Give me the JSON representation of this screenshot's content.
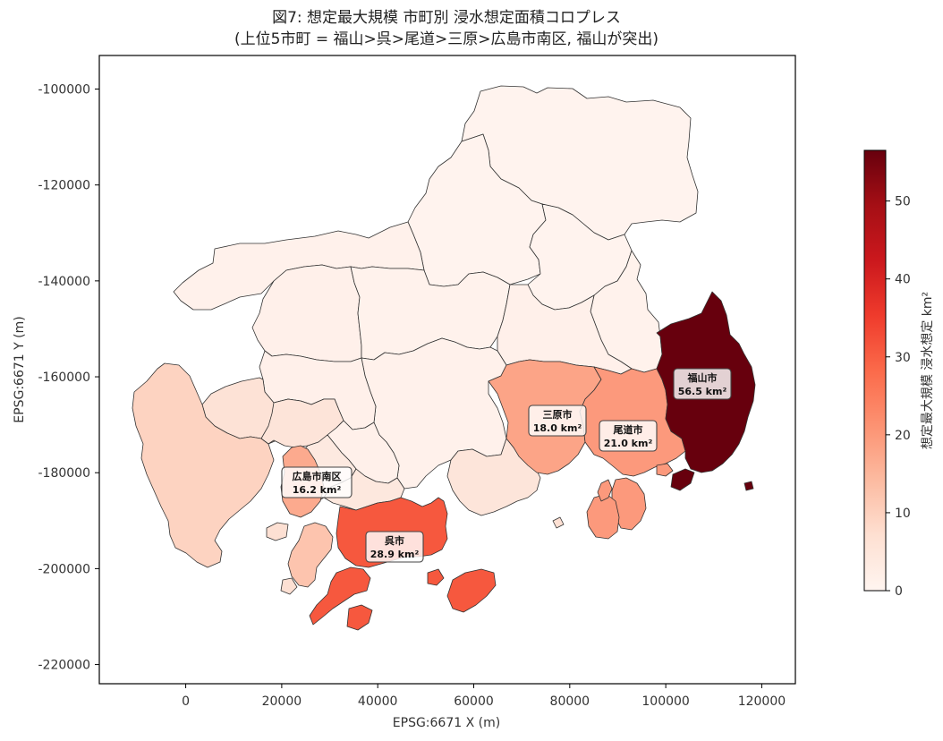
{
  "chart_data": {
    "type": "choropleth",
    "title_line1": "図7: 想定最大規模 市町別 浸水想定面積コロプレス",
    "title_line2": "(上位5市町 = 福山>呉>尾道>三原>広島市南区, 福山が突出)",
    "xlabel": "EPSG:6671 X (m)",
    "ylabel": "EPSG:6671 Y (m)",
    "xlim": [
      -18000,
      127000
    ],
    "ylim": [
      -224000,
      -93000
    ],
    "x_ticks": [
      0,
      20000,
      40000,
      60000,
      80000,
      100000,
      120000
    ],
    "y_ticks": [
      -100000,
      -120000,
      -140000,
      -160000,
      -180000,
      -200000,
      -220000
    ],
    "colorbar": {
      "label": "想定最大規模 浸水想定 km²",
      "min": 0,
      "max": 56.5,
      "ticks": [
        0,
        10,
        20,
        30,
        40,
        50
      ],
      "colormap": "Reds"
    },
    "labeled_municipalities": [
      {
        "name": "福山市",
        "value_text": "56.5 km²",
        "value": 56.5
      },
      {
        "name": "呉市",
        "value_text": "28.9 km²",
        "value": 28.9
      },
      {
        "name": "尾道市",
        "value_text": "21.0 km²",
        "value": 21.0
      },
      {
        "name": "三原市",
        "value_text": "18.0 km²",
        "value": 18.0
      },
      {
        "name": "広島市南区",
        "value_text": "16.2 km²",
        "value": 16.2
      }
    ]
  }
}
